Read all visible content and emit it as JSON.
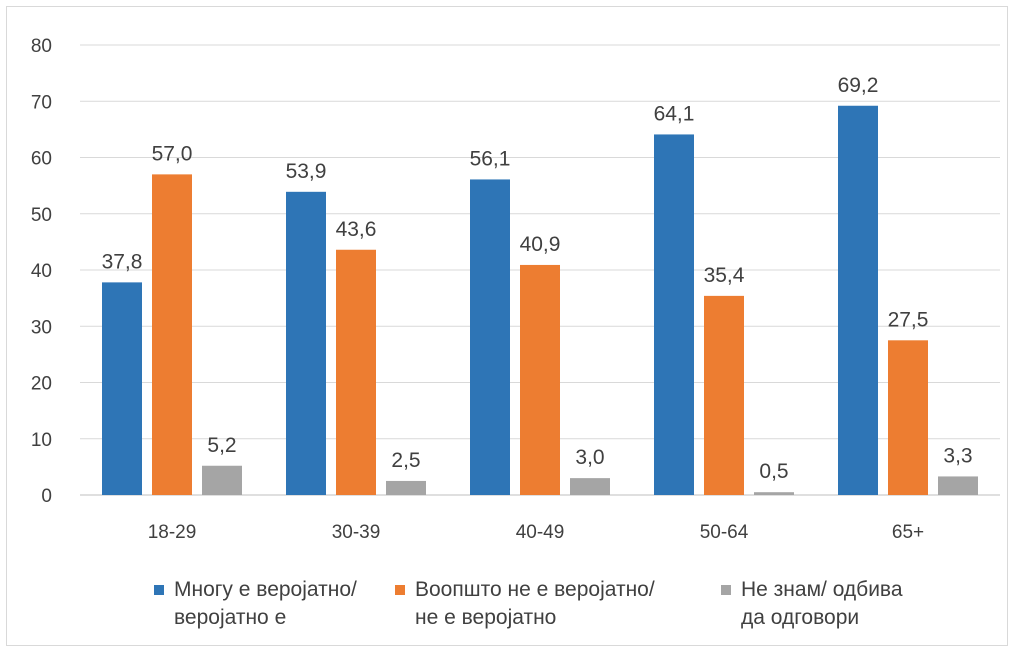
{
  "chart_data": {
    "type": "bar",
    "categories": [
      "18-29",
      "30-39",
      "40-49",
      "50-64",
      "65+"
    ],
    "series": [
      {
        "name": "Многу е веројатно/\nверојатно е",
        "color": "#2E75B6",
        "values": [
          37.8,
          53.9,
          56.1,
          64.1,
          69.2
        ]
      },
      {
        "name": "Воопшто не е веројатно/\nне е веројатно",
        "color": "#ED7D31",
        "values": [
          57.0,
          43.6,
          40.9,
          35.4,
          27.5
        ]
      },
      {
        "name": "Не знам/ одбива\nда одговори",
        "color": "#A5A5A5",
        "values": [
          5.2,
          2.5,
          3.0,
          0.5,
          3.3
        ]
      }
    ],
    "data_labels": [
      [
        "37,8",
        "53,9",
        "56,1",
        "64,1",
        "69,2"
      ],
      [
        "57,0",
        "43,6",
        "40,9",
        "35,4",
        "27,5"
      ],
      [
        "5,2",
        "2,5",
        "3,0",
        "0,5",
        "3,3"
      ]
    ],
    "y_ticks": [
      "0",
      "10",
      "20",
      "30",
      "40",
      "50",
      "60",
      "70",
      "80"
    ],
    "ylim": [
      0,
      80
    ],
    "grid": true,
    "legend_position": "bottom"
  }
}
